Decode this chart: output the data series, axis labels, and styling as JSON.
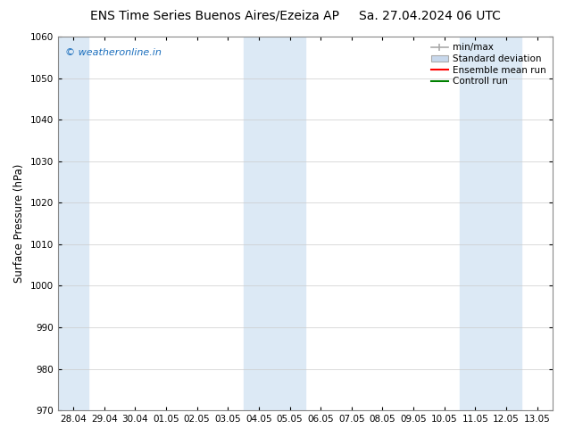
{
  "title_left": "ENS Time Series Buenos Aires/Ezeiza AP",
  "title_right": "Sa. 27.04.2024 06 UTC",
  "ylabel": "Surface Pressure (hPa)",
  "ylim": [
    970,
    1060
  ],
  "yticks": [
    970,
    980,
    990,
    1000,
    1010,
    1020,
    1030,
    1040,
    1050,
    1060
  ],
  "x_tick_labels": [
    "28.04",
    "29.04",
    "30.04",
    "01.05",
    "02.05",
    "03.05",
    "04.05",
    "05.05",
    "06.05",
    "07.05",
    "08.05",
    "09.05",
    "10.05",
    "11.05",
    "12.05",
    "13.05"
  ],
  "watermark": "© weatheronline.in",
  "watermark_color": "#1a6ebd",
  "bg_color": "#ffffff",
  "plot_bg_color": "#ffffff",
  "shaded_band_color": "#dce9f5",
  "shaded_intervals": [
    [
      0,
      1
    ],
    [
      6,
      8
    ],
    [
      13,
      15
    ]
  ],
  "legend_labels": [
    "min/max",
    "Standard deviation",
    "Ensemble mean run",
    "Controll run"
  ],
  "legend_minmax_color": "#aaaaaa",
  "legend_std_color": "#c8d8ec",
  "legend_mean_color": "#ff0000",
  "legend_ctrl_color": "#008000",
  "title_fontsize": 10,
  "tick_fontsize": 7.5,
  "ylabel_fontsize": 8.5,
  "watermark_fontsize": 8
}
